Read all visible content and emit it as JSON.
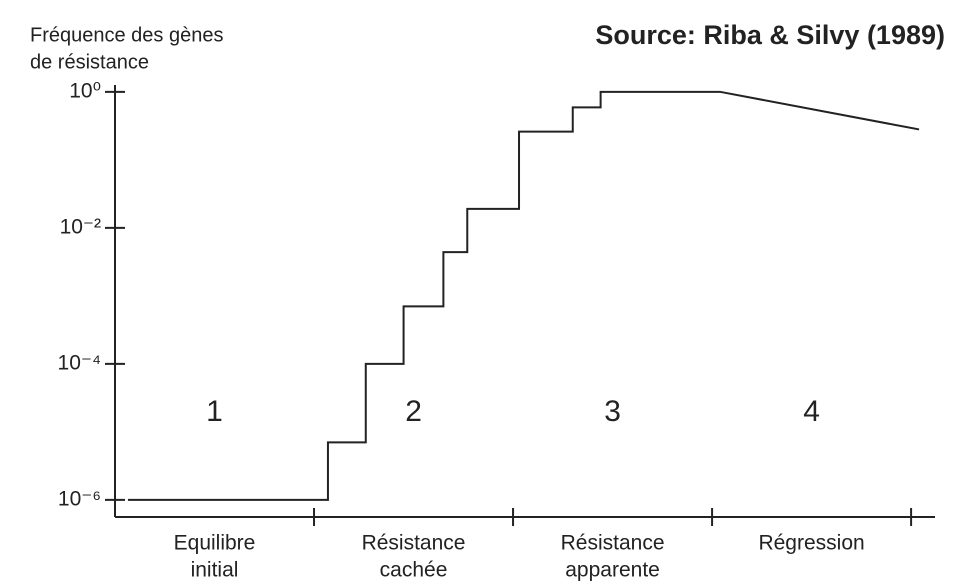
{
  "chart_data": {
    "type": "line",
    "source": "Source: Riba & Silvy (1989)",
    "ylabel": [
      "Fréquence des gènes",
      "de résistance"
    ],
    "log_y": true,
    "ylim": [
      5.6e-07,
      1.26
    ],
    "yticks": [
      {
        "value": 1e-06,
        "label": "10⁻⁶"
      },
      {
        "value": 0.0001,
        "label": "10⁻⁴"
      },
      {
        "value": 0.01,
        "label": "10⁻²"
      },
      {
        "value": 1,
        "label": "10⁰"
      }
    ],
    "xlim": [
      0,
      4.1
    ],
    "xticks": [
      1,
      2,
      3,
      4
    ],
    "x": [
      0.065,
      1.07,
      1.07,
      1.26,
      1.26,
      1.45,
      1.45,
      1.65,
      1.65,
      1.77,
      1.77,
      2.03,
      2.03,
      2.3,
      2.3,
      2.44,
      2.44,
      3.04,
      4.04
    ],
    "series": [
      {
        "color": "#222222",
        "values": [
          1e-06,
          1e-06,
          7e-06,
          7e-06,
          0.0001,
          0.0001,
          0.0007,
          0.0007,
          0.0044,
          0.0044,
          0.019,
          0.019,
          0.26,
          0.26,
          0.59,
          0.59,
          1,
          1,
          0.28
        ]
      }
    ],
    "phases": [
      {
        "number": "1",
        "label": [
          "Equilibre",
          "initial"
        ]
      },
      {
        "number": "2",
        "label": [
          "Résistance",
          "cachée"
        ]
      },
      {
        "number": "3",
        "label": [
          "Résistance",
          "apparente"
        ]
      },
      {
        "number": "4",
        "label": [
          "Régression"
        ]
      }
    ]
  }
}
